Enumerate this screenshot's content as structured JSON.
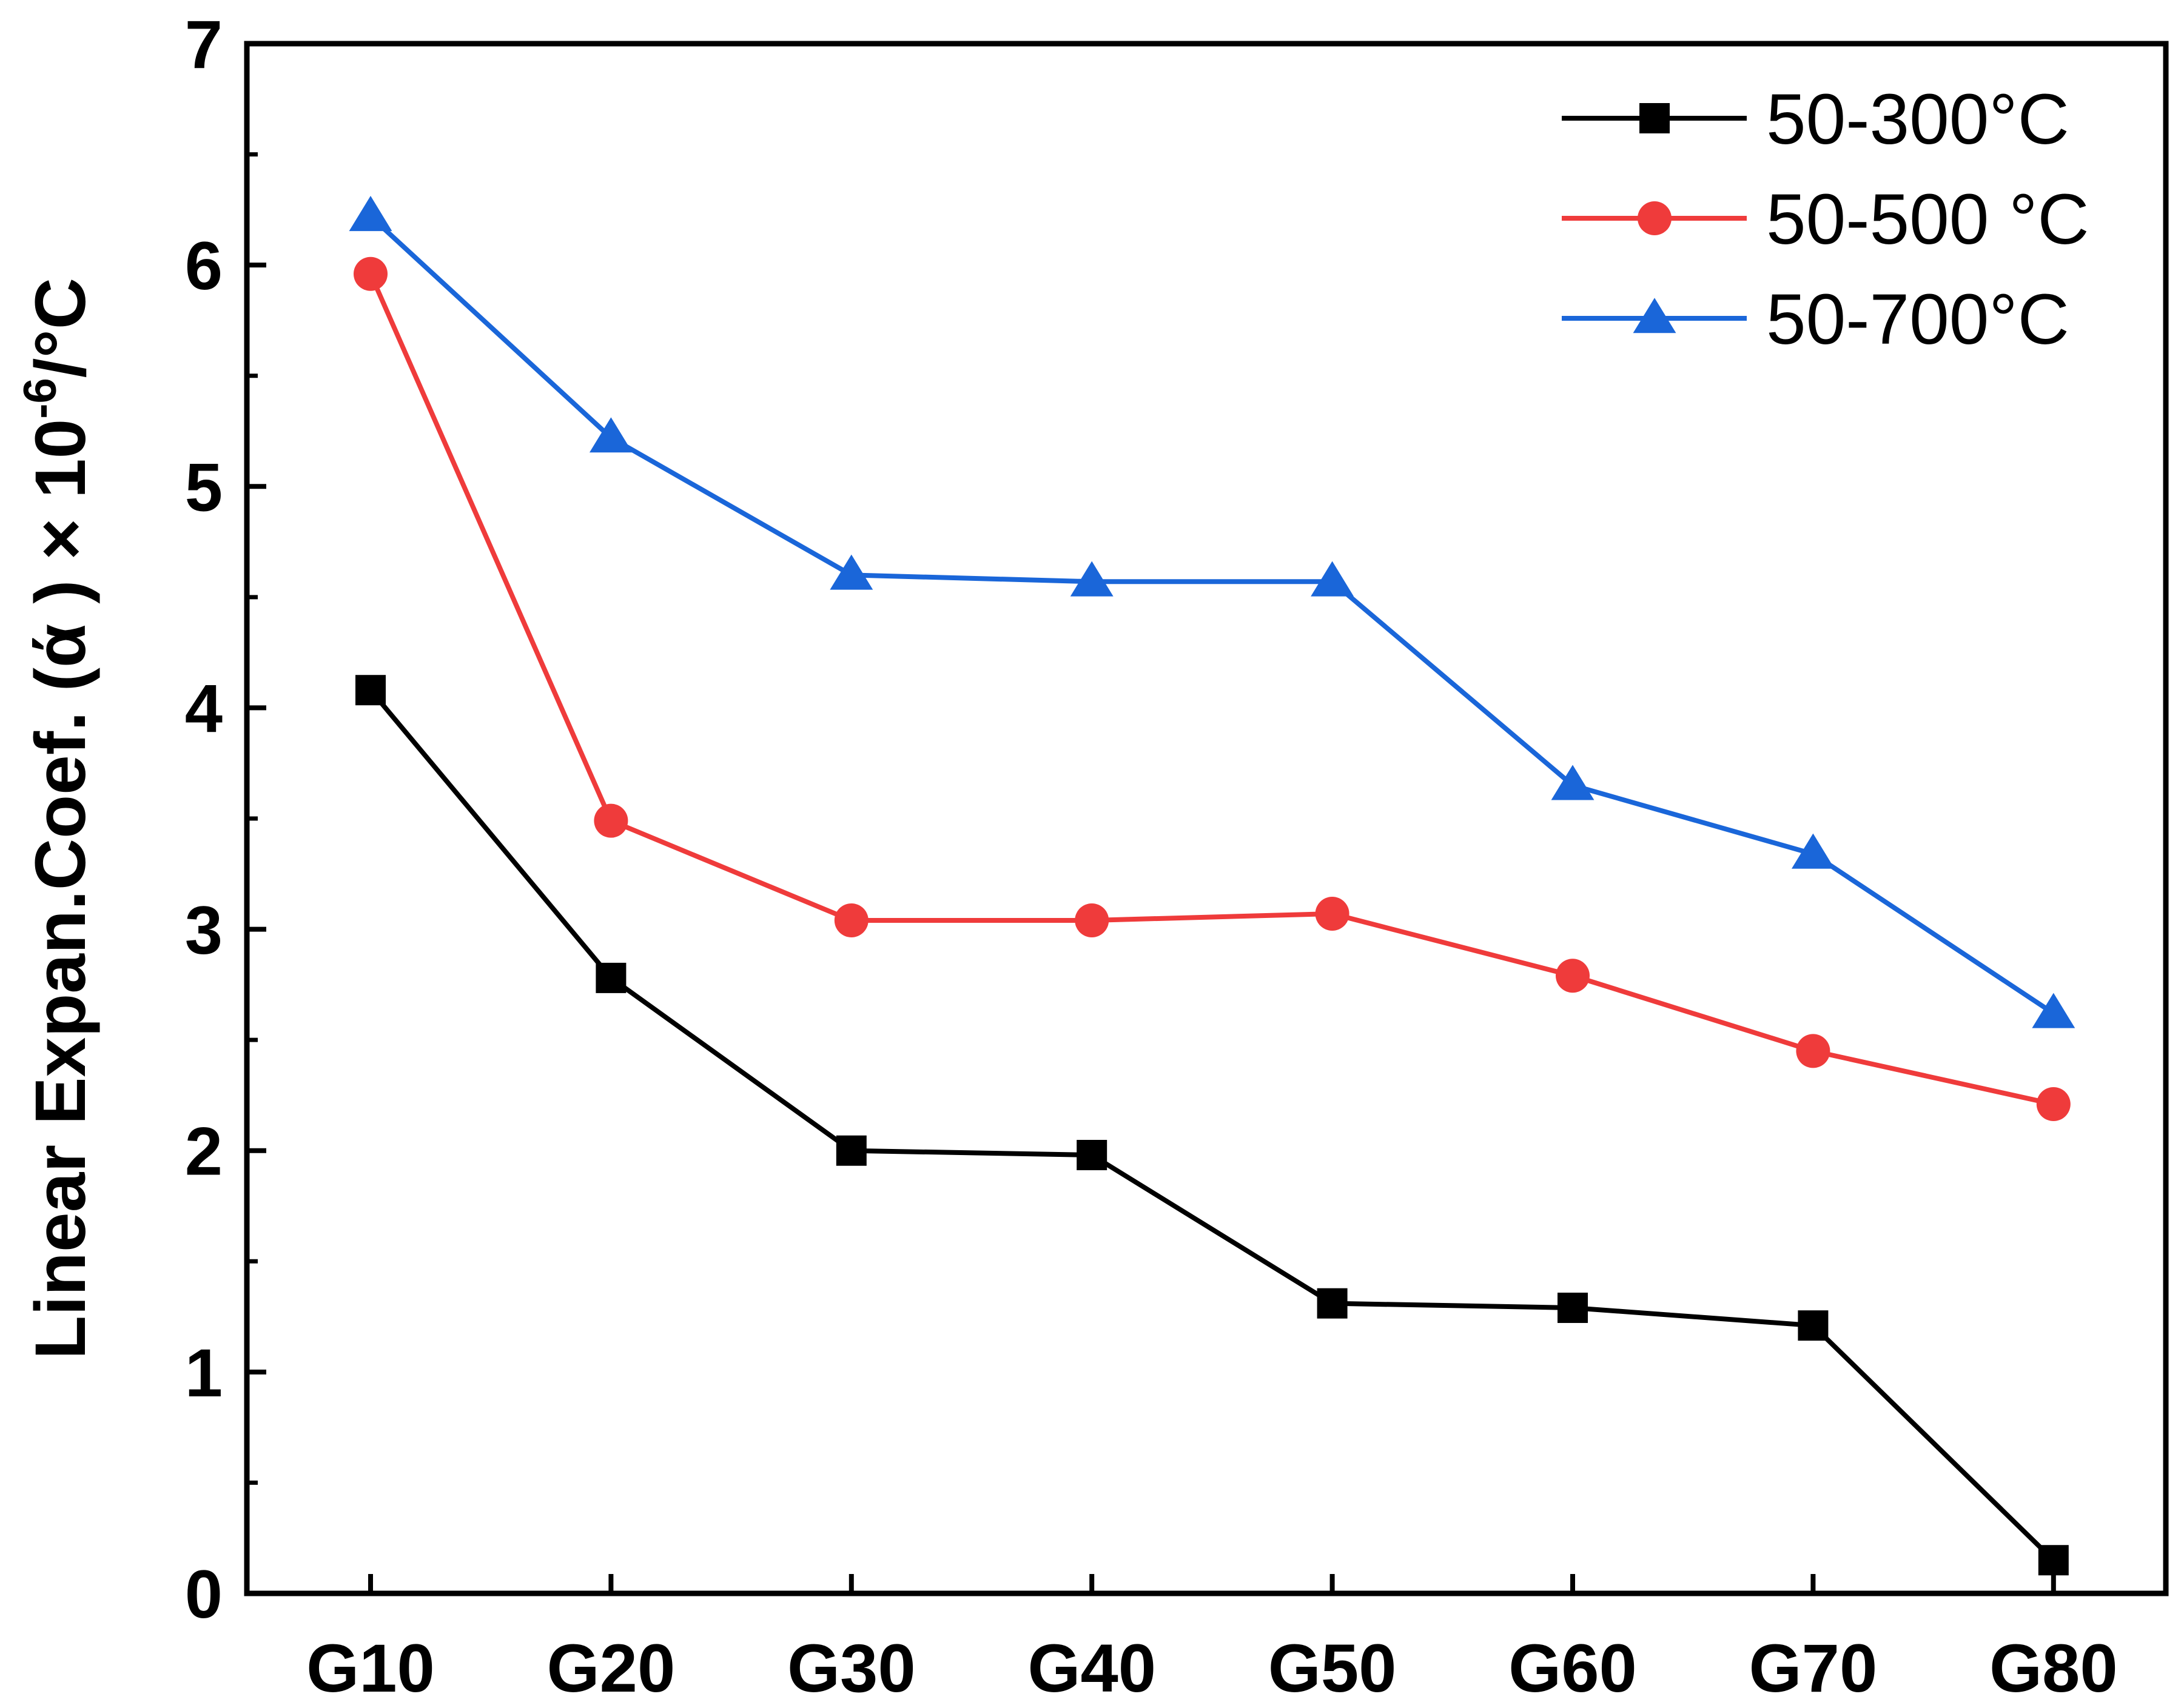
{
  "chart_data": {
    "type": "line",
    "title": "",
    "xlabel": "",
    "ylabel": "Linear Expan.Coef. (ά ) × 10",
    "ylabel_superscript": "-6",
    "ylabel_suffix": "/°C",
    "categories": [
      "G10",
      "G20",
      "G30",
      "G40",
      "G50",
      "G60",
      "G70",
      "G80"
    ],
    "ylim": [
      0,
      7
    ],
    "yticks": [
      0,
      1,
      2,
      3,
      4,
      5,
      6,
      7
    ],
    "grid": false,
    "legend_position": "top-right",
    "series": [
      {
        "name": "50-300°C",
        "color": "#000000",
        "marker": "square",
        "values": [
          4.08,
          2.78,
          2.0,
          1.98,
          1.31,
          1.29,
          1.21,
          0.15
        ]
      },
      {
        "name": "50-500 °C",
        "color": "#ef3b3b",
        "marker": "circle",
        "values": [
          5.96,
          3.49,
          3.04,
          3.04,
          3.07,
          2.79,
          2.45,
          2.21
        ]
      },
      {
        "name": "50-700°C",
        "color": "#1a66d9",
        "marker": "triangle",
        "values": [
          6.22,
          5.22,
          4.6,
          4.57,
          4.57,
          3.65,
          3.34,
          2.62
        ]
      }
    ]
  }
}
